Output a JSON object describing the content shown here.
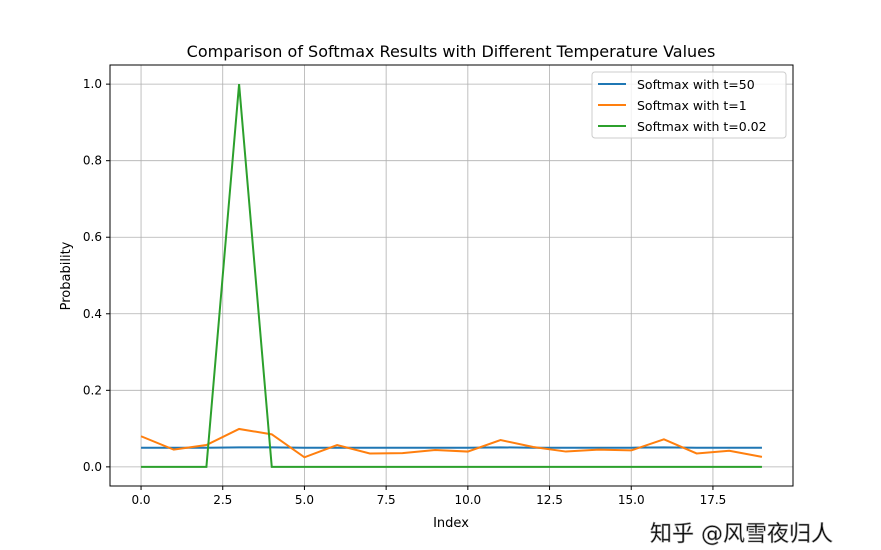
{
  "chart_data": {
    "type": "line",
    "title": "Comparison of Softmax Results with Different Temperature Values",
    "xlabel": "Index",
    "ylabel": "Probability",
    "xlim": [
      -0.95,
      19.95
    ],
    "ylim": [
      -0.05,
      1.05
    ],
    "xticks": [
      0,
      2.5,
      5,
      7.5,
      10,
      12.5,
      15,
      17.5
    ],
    "xtick_labels": [
      "0.0",
      "2.5",
      "5.0",
      "7.5",
      "10.0",
      "12.5",
      "15.0",
      "17.5"
    ],
    "yticks": [
      0,
      0.2,
      0.4,
      0.6,
      0.8,
      1.0
    ],
    "ytick_labels": [
      "0.0",
      "0.2",
      "0.4",
      "0.6",
      "0.8",
      "1.0"
    ],
    "grid": true,
    "legend_position": "top-right",
    "x": [
      0,
      1,
      2,
      3,
      4,
      5,
      6,
      7,
      8,
      9,
      10,
      11,
      12,
      13,
      14,
      15,
      16,
      17,
      18,
      19
    ],
    "series": [
      {
        "name": "Softmax with t=50",
        "color": "#1f77b4",
        "values": [
          0.05,
          0.05,
          0.05,
          0.051,
          0.051,
          0.05,
          0.05,
          0.05,
          0.05,
          0.05,
          0.05,
          0.051,
          0.05,
          0.05,
          0.05,
          0.05,
          0.051,
          0.05,
          0.05,
          0.05
        ]
      },
      {
        "name": "Softmax with t=1",
        "color": "#ff7f0e",
        "values": [
          0.08,
          0.045,
          0.057,
          0.099,
          0.085,
          0.025,
          0.057,
          0.035,
          0.036,
          0.044,
          0.04,
          0.07,
          0.052,
          0.04,
          0.045,
          0.043,
          0.072,
          0.035,
          0.042,
          0.026
        ]
      },
      {
        "name": "Softmax with t=0.02",
        "color": "#2ca02c",
        "values": [
          0,
          0,
          0,
          1,
          0,
          0,
          0,
          0,
          0,
          0,
          0,
          0,
          0,
          0,
          0,
          0,
          0,
          0,
          0,
          0
        ]
      }
    ]
  },
  "watermark": "知乎 @风雪夜归人"
}
